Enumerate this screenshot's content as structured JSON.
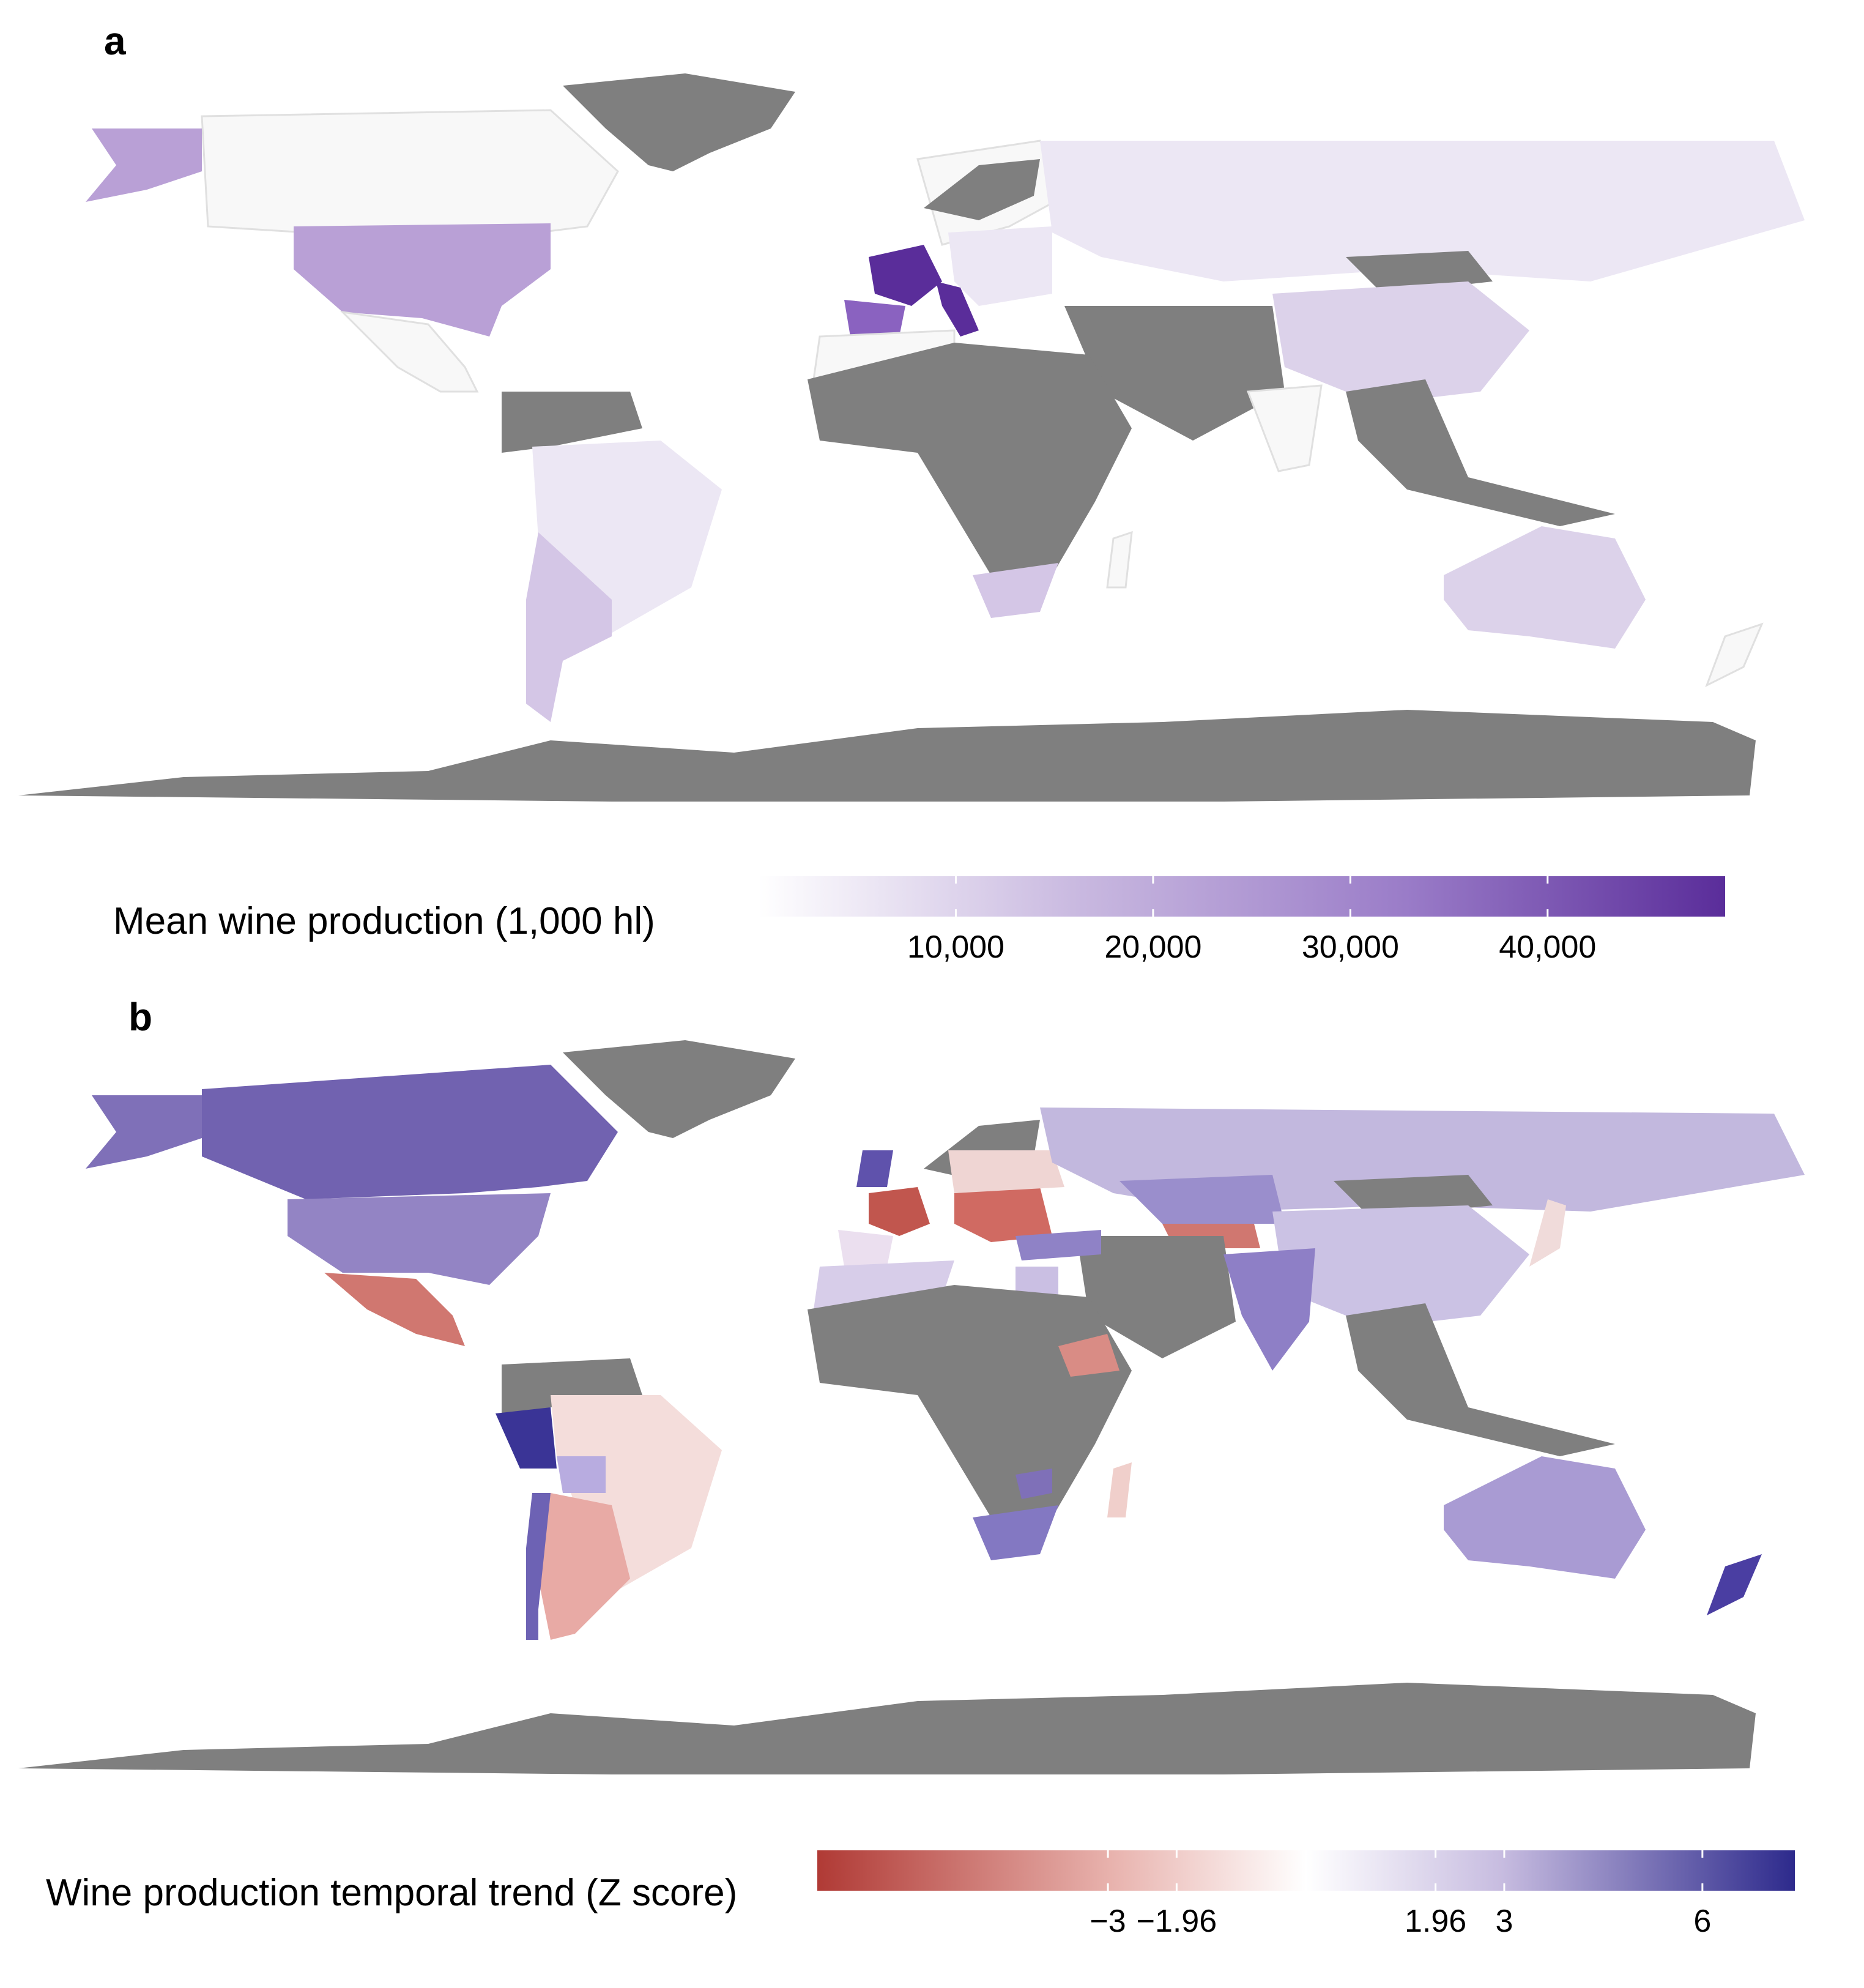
{
  "panels": [
    {
      "letter": "a",
      "legend": {
        "title": "Mean wine production (1,000 hl)",
        "colors": [
          "#ffffff",
          "#c9b9e0",
          "#9a7cc8",
          "#5a2d9a"
        ],
        "range": [
          0,
          49000
        ],
        "ticks": [
          {
            "value": 10000,
            "label": "10,000"
          },
          {
            "value": 20000,
            "label": "20,000"
          },
          {
            "value": 30000,
            "label": "30,000"
          },
          {
            "value": 40000,
            "label": "40,000"
          }
        ]
      },
      "countries": [
        {
          "name": "France",
          "value": 48000
        },
        {
          "name": "Italy",
          "value": 47000
        },
        {
          "name": "Spain",
          "value": 36000
        },
        {
          "name": "USA",
          "value": 20000
        },
        {
          "name": "Argentina",
          "value": 14000
        },
        {
          "name": "China",
          "value": 10000
        },
        {
          "name": "Australia",
          "value": 9000
        },
        {
          "name": "South Africa",
          "value": 8000
        }
      ]
    },
    {
      "letter": "b",
      "legend": {
        "title": "Wine production temporal trend (Z score)",
        "colors": [
          "#b03a35",
          "#e8b2ad",
          "#ffffff",
          "#c7bce0",
          "#2d2a8c"
        ],
        "range": [
          -7.4,
          7.4
        ],
        "ticks": [
          {
            "value": -3,
            "label": "−3"
          },
          {
            "value": -1.96,
            "label": "−1.96"
          },
          {
            "value": 1.96,
            "label": "1.96"
          },
          {
            "value": 3,
            "label": "3"
          },
          {
            "value": 6,
            "label": "6"
          }
        ]
      }
    }
  ],
  "map_colors": {
    "no_data": "#7f7f7f",
    "zero": "#f8f8f8",
    "border": "#ffffff"
  }
}
